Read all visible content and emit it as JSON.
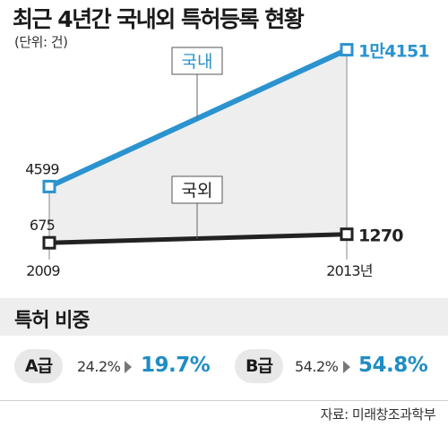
{
  "header": {
    "title": "최근 4년간 국내외 특허등록 현황",
    "unit": "(단위: 건)"
  },
  "chart_data": {
    "type": "line",
    "x": [
      "2009",
      "2013년"
    ],
    "series": [
      {
        "name": "국내",
        "values": [
          4599,
          14151
        ],
        "labels": [
          "4599",
          "1만4151"
        ],
        "color": "#2b93cf"
      },
      {
        "name": "국외",
        "values": [
          675,
          1270
        ],
        "labels": [
          "675",
          "1270"
        ],
        "color": "#222222"
      }
    ],
    "title": "최근 4년간 국내외 특허등록 현황",
    "ylabel": "",
    "xlabel": "",
    "ylim": [
      0,
      15000
    ],
    "grid": false,
    "legend": "inline"
  },
  "share": {
    "title": "특허 비중",
    "items": [
      {
        "label": "A급",
        "old": "24.2%",
        "new": "19.7%"
      },
      {
        "label": "B급",
        "old": "54.2%",
        "new": "54.8%"
      }
    ]
  },
  "source": "자료: 미래창조과학부",
  "colors": {
    "domestic": "#2b93cf",
    "foreign": "#222222",
    "highlight": "#1f8dc4",
    "fill": "#eeeeee"
  }
}
